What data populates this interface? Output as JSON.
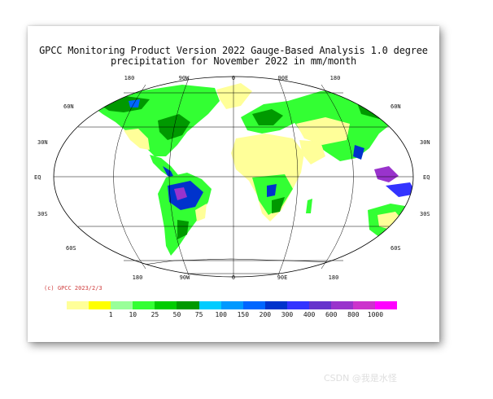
{
  "title_line1": "GPCC Monitoring Product Version 2022 Gauge-Based Analysis 1.0 degree",
  "title_line2": "precipitation for November  2022 in mm/month",
  "lon_labels_top": [
    "180",
    "90W",
    "0",
    "90E",
    "180"
  ],
  "lon_labels_bottom": [
    "180",
    "90W",
    "0",
    "90E",
    "180"
  ],
  "lat_labels_left": [
    "60N",
    "30N",
    "EQ",
    "30S",
    "60S"
  ],
  "lat_labels_right": [
    "60N",
    "30N",
    "EQ",
    "30S",
    "60S"
  ],
  "credit": "(c) GPCC 2023/2/3",
  "legend": {
    "colors": [
      "#ffff99",
      "#ffff00",
      "#99ff99",
      "#33ff33",
      "#00cc00",
      "#009900",
      "#00ccff",
      "#0099ff",
      "#0066ff",
      "#0033cc",
      "#3333ff",
      "#6633cc",
      "#9933cc",
      "#cc33cc",
      "#ff00ff"
    ],
    "labels": [
      "1",
      "10",
      "25",
      "50",
      "75",
      "100",
      "150",
      "200",
      "300",
      "400",
      "600",
      "800",
      "1000"
    ]
  },
  "palette": {
    "ocean": "#ffffff",
    "graticule": "#000000",
    "land_dry": "#ffff99",
    "land_low": "#ffff00",
    "land_mid": "#33ff33",
    "land_wet": "#009900",
    "land_very_wet": "#0033cc",
    "land_extreme": "#9933cc"
  },
  "watermark": "CSDN @我是水怪"
}
